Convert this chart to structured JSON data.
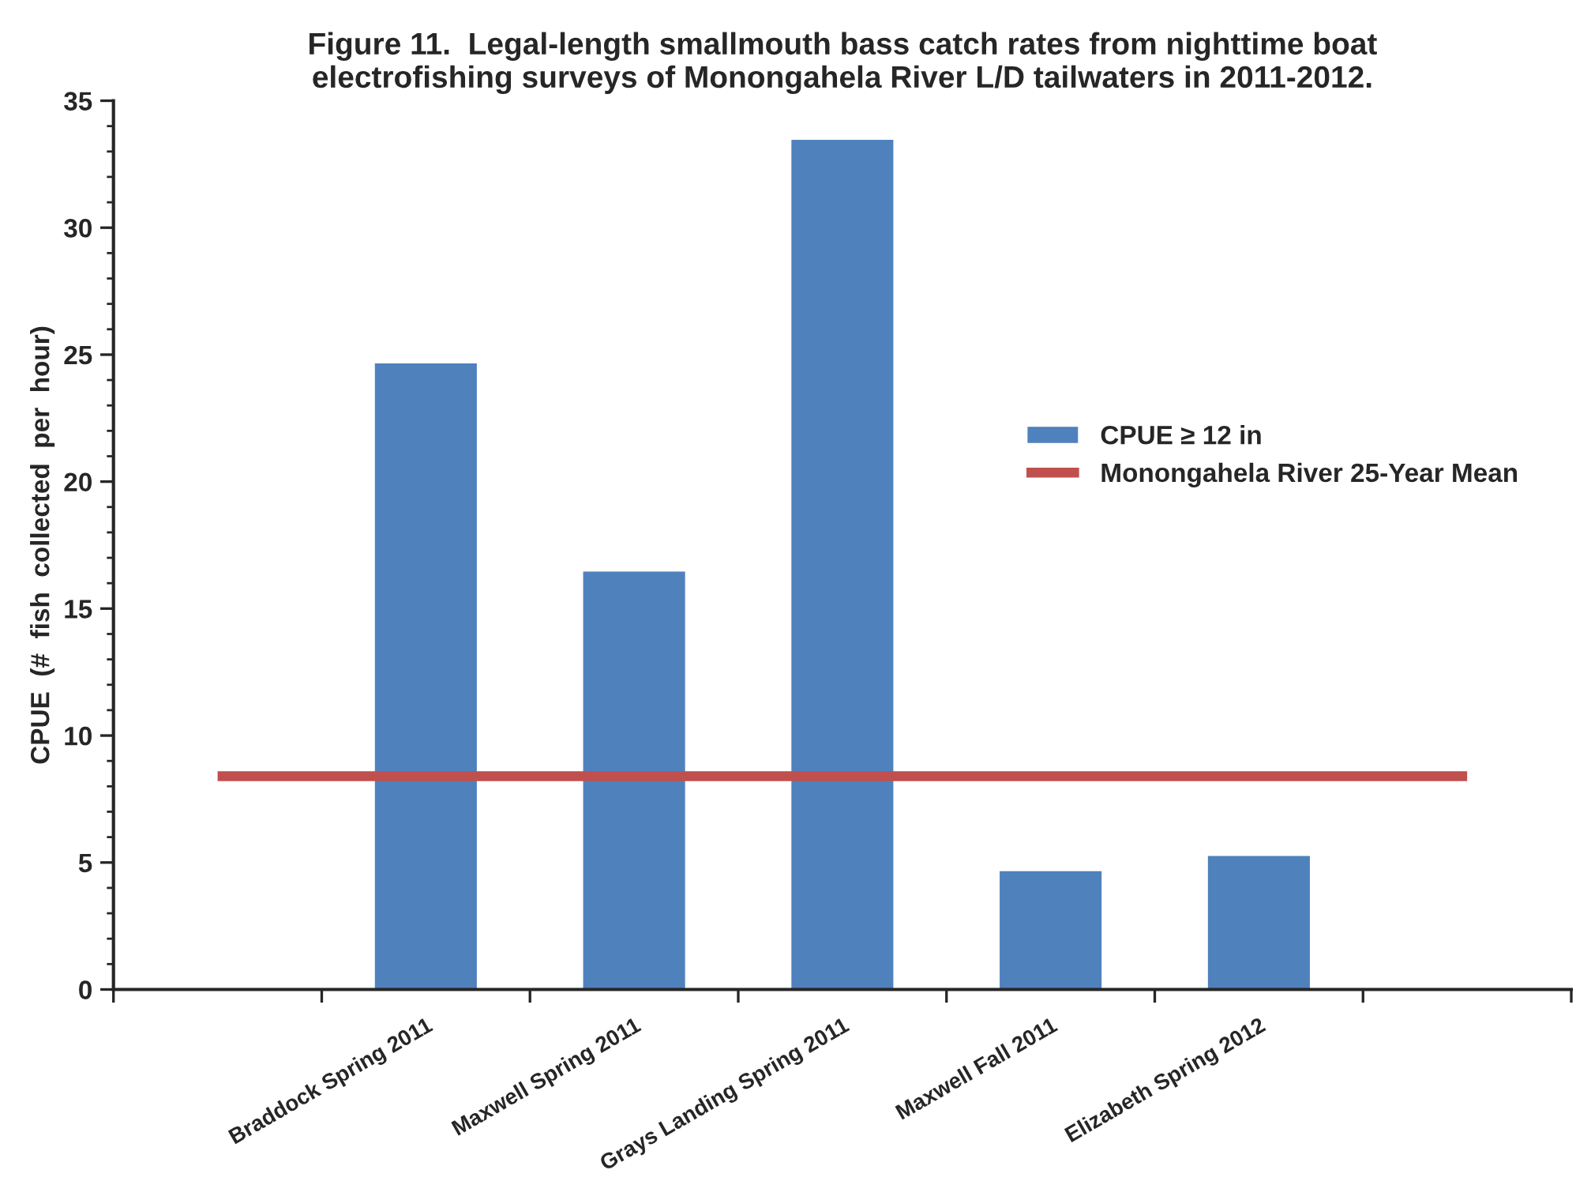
{
  "chart_data": {
    "type": "bar",
    "title": "Figure 11.  Legal-length smallmouth bass catch rates from nighttime boat\nelectrofishing surveys of Monongahela River L/D tailwaters in 2011-2012.",
    "ylabel": "CPUE  (#  fish  collected  per  hour)",
    "categories": [
      null,
      "Braddock Spring 2011",
      "Maxwell Spring 2011",
      "Grays Landing Spring 2011",
      "Maxwell Fall 2011",
      "Elizabeth Spring 2012",
      null
    ],
    "series": [
      {
        "name": "CPUE ≥ 12 in",
        "color": "#4f81bd",
        "values": [
          null,
          24.7,
          16.5,
          33.5,
          4.7,
          5.3,
          null
        ]
      },
      {
        "name": "Monongahela River 25-Year Mean",
        "type": "line",
        "color": "#c0504d",
        "marker": "none",
        "line_style": "solid",
        "values": [
          8.4,
          8.4,
          8.4,
          8.4,
          8.4,
          8.4,
          8.4
        ]
      }
    ],
    "ylim": [
      0,
      35
    ],
    "yticks": [
      0,
      5,
      10,
      15,
      20,
      25,
      30,
      35
    ],
    "grid": false,
    "legend": "right"
  }
}
